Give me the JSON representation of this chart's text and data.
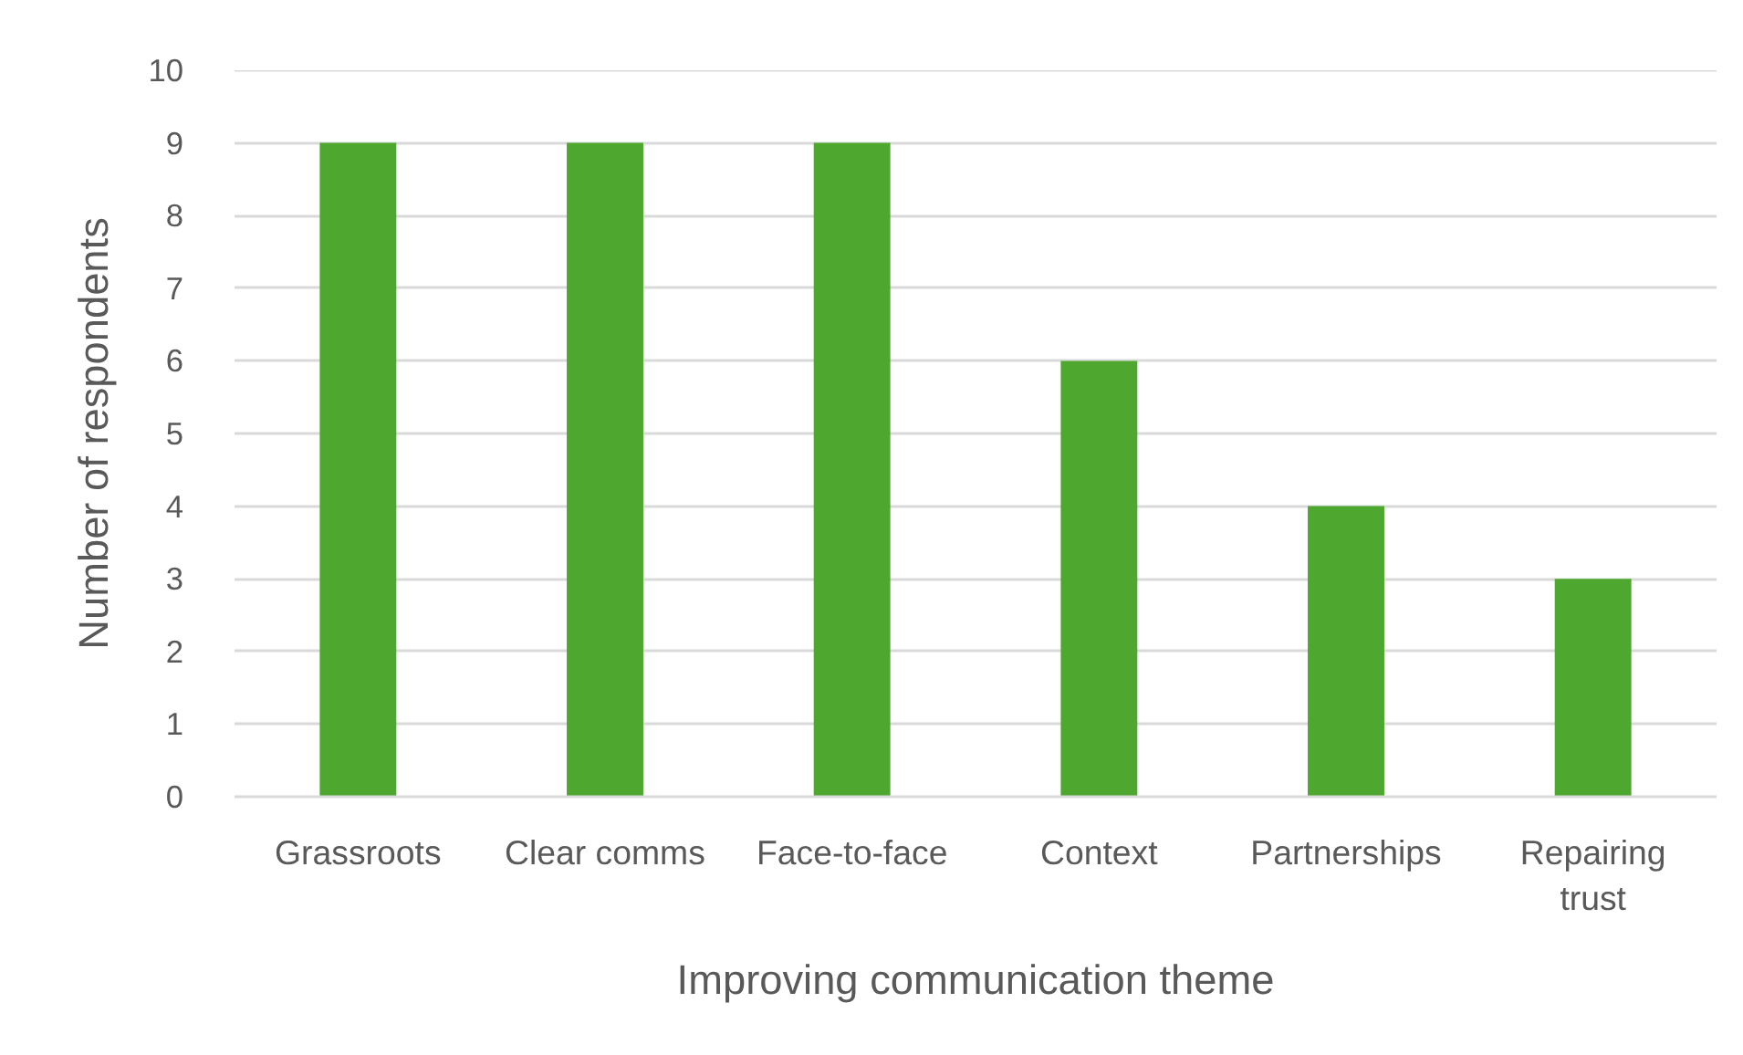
{
  "chart_data": {
    "type": "bar",
    "categories": [
      "Grassroots",
      "Clear comms",
      "Face-to-face",
      "Context",
      "Partnerships",
      "Repairing trust"
    ],
    "values": [
      9,
      9,
      9,
      6,
      4,
      3
    ],
    "color": "#4ea72e",
    "xlabel": "Improving communication theme",
    "ylabel": "Number of respondents",
    "ylim": [
      0,
      10
    ],
    "yticks": [
      0,
      1,
      2,
      3,
      4,
      5,
      6,
      7,
      8,
      9,
      10
    ],
    "grid": "y"
  }
}
